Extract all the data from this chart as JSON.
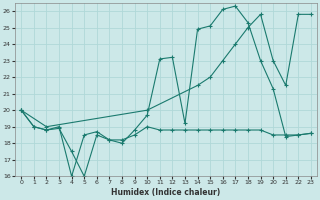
{
  "xlabel": "Humidex (Indice chaleur)",
  "background_color": "#cce8e8",
  "grid_color": "#b0d8d8",
  "line_color": "#1a7a6e",
  "xlim": [
    -0.5,
    23.5
  ],
  "ylim": [
    16,
    26.5
  ],
  "yticks": [
    16,
    17,
    18,
    19,
    20,
    21,
    22,
    23,
    24,
    25,
    26
  ],
  "xticks": [
    0,
    1,
    2,
    3,
    4,
    5,
    6,
    7,
    8,
    9,
    10,
    11,
    12,
    13,
    14,
    15,
    16,
    17,
    18,
    19,
    20,
    21,
    22,
    23
  ],
  "line1_x": [
    0,
    1,
    2,
    3,
    4,
    5,
    6,
    7,
    8,
    9,
    10,
    11,
    12,
    13,
    14,
    15,
    16,
    17,
    18,
    19,
    20,
    21,
    22,
    23
  ],
  "line1_y": [
    20.0,
    19.0,
    18.8,
    19.0,
    16.0,
    18.5,
    18.7,
    18.2,
    18.2,
    18.5,
    19.0,
    18.8,
    18.8,
    18.8,
    18.8,
    18.8,
    18.8,
    18.8,
    18.8,
    18.8,
    18.5,
    18.5,
    18.5,
    18.6
  ],
  "line2_x": [
    0,
    1,
    2,
    3,
    4,
    5,
    6,
    7,
    8,
    9,
    10,
    11,
    12,
    13,
    14,
    15,
    16,
    17,
    18,
    19,
    20,
    21,
    22,
    23
  ],
  "line2_y": [
    20.0,
    19.0,
    18.8,
    18.9,
    17.5,
    16.0,
    18.5,
    18.2,
    18.0,
    18.8,
    19.7,
    23.1,
    23.2,
    19.2,
    24.9,
    25.1,
    26.1,
    26.3,
    25.3,
    23.0,
    21.3,
    18.4,
    18.5,
    18.6
  ],
  "line3_x": [
    0,
    2,
    10,
    14,
    15,
    16,
    17,
    18,
    19,
    20,
    21,
    22,
    23
  ],
  "line3_y": [
    20.0,
    19.0,
    20.0,
    21.5,
    22.0,
    23.0,
    24.0,
    25.0,
    25.8,
    23.0,
    21.5,
    25.8,
    25.8
  ]
}
